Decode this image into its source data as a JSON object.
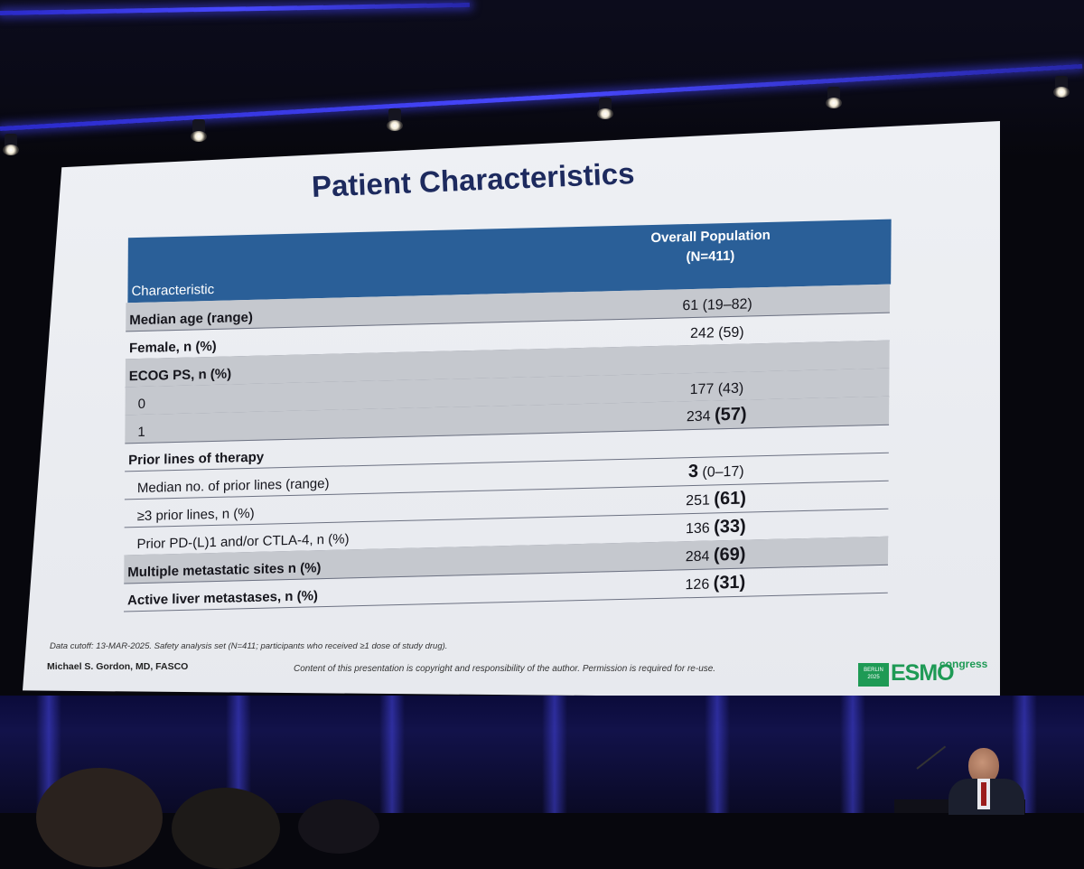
{
  "slide": {
    "title": "Patient Characteristics",
    "table": {
      "header_characteristic": "Characteristic",
      "header_population_line1": "Overall Population",
      "header_population_line2": "(N=411)",
      "rows": [
        {
          "label": "Median age (range)",
          "value": "61 (19–82)",
          "value_main": "",
          "value_emph": "",
          "value_tail": "",
          "bold": true,
          "shaded": true
        },
        {
          "label": "Female, n (%)",
          "value": "242 (59)",
          "value_main": "",
          "value_emph": "",
          "value_tail": "",
          "bold": true,
          "shaded": false
        },
        {
          "label": "ECOG PS, n (%)",
          "value": "",
          "value_main": "",
          "value_emph": "",
          "value_tail": "",
          "bold": true,
          "shaded": true
        },
        {
          "label": "0",
          "value": "177 (43)",
          "value_main": "",
          "value_emph": "",
          "value_tail": "",
          "bold": false,
          "shaded": true
        },
        {
          "label": "1",
          "value": "",
          "value_main": "234 ",
          "value_emph": "(57)",
          "value_tail": "",
          "bold": false,
          "shaded": true
        },
        {
          "label": "Prior lines of therapy",
          "value": "",
          "value_main": "",
          "value_emph": "",
          "value_tail": "",
          "bold": true,
          "shaded": false
        },
        {
          "label": "Median no. of prior lines (range)",
          "value": "",
          "value_main": "",
          "value_emph": "3",
          "value_tail": " (0–17)",
          "bold": false,
          "shaded": false
        },
        {
          "label": "≥3 prior lines, n (%)",
          "value": "",
          "value_main": "251 ",
          "value_emph": "(61)",
          "value_tail": "",
          "bold": false,
          "shaded": false
        },
        {
          "label": "Prior PD-(L)1 and/or CTLA-4, n (%)",
          "value": "",
          "value_main": "136 ",
          "value_emph": "(33)",
          "value_tail": "",
          "bold": false,
          "shaded": false
        },
        {
          "label": "Multiple metastatic sites n (%)",
          "value": "",
          "value_main": "284 ",
          "value_emph": "(69)",
          "value_tail": "",
          "bold": true,
          "shaded": true
        },
        {
          "label": "Active liver metastases, n (%)",
          "value": "",
          "value_main": "126 ",
          "value_emph": "(31)",
          "value_tail": "",
          "bold": true,
          "shaded": false
        }
      ]
    },
    "footnote": "Data cutoff: 13-MAR-2025. Safety analysis set (N=411; participants who received ≥1 dose of study drug).",
    "presenter": "Michael S. Gordon, MD, FASCO",
    "copyright": "Content of this presentation is copyright and responsibility of the author. Permission is required for re-use.",
    "logo": {
      "badge_line1": "BERLIN",
      "badge_line2": "2025",
      "brand": "ESMO",
      "suffix": "congress"
    }
  },
  "colors": {
    "header_bg": "#2a5f98",
    "title": "#1d2a5e",
    "shaded_row": "#c5c8ce",
    "esmo_green": "#1e9a55",
    "stage_blue": "#4848ff"
  }
}
